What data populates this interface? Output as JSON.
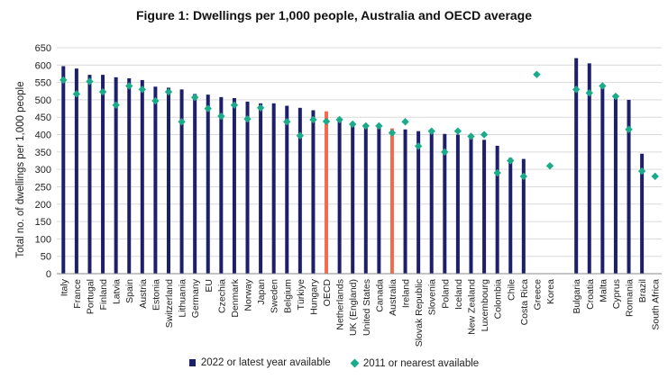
{
  "chart_data": {
    "type": "bar",
    "title": "Figure 1: Dwellings per 1,000 people, Australia and OECD average",
    "ylabel": "Total no. of dwellings per 1,000 people",
    "xlabel": "",
    "ylim": [
      0,
      650
    ],
    "yticks": [
      0,
      50,
      100,
      150,
      200,
      250,
      300,
      350,
      400,
      450,
      500,
      550,
      600,
      650
    ],
    "categories": [
      "Italy",
      "France",
      "Portugal",
      "Finland",
      "Latvia",
      "Spain",
      "Austria",
      "Estonia",
      "Switzerland",
      "Lithuania",
      "Germany",
      "EU",
      "Czechia",
      "Denmark",
      "Norway",
      "Japan",
      "Sweden",
      "Belgium",
      "Türkiye",
      "Hungary",
      "OECD",
      "Netherlands",
      "UK (England)",
      "United States",
      "Canada",
      "Australia",
      "Ireland",
      "Slovak Republic",
      "Slovenia",
      "Poland",
      "Iceland",
      "New Zealand",
      "Luxembourg",
      "Colombia",
      "Chile",
      "Costa Rica",
      "Greece",
      "Korea",
      "",
      "Bulgaria",
      "Croatia",
      "Malta",
      "Cyprus",
      "Romania",
      "Brazil",
      "South Africa"
    ],
    "series": [
      {
        "name": "2022 or latest year available",
        "marker": "bar",
        "values": [
          597,
          590,
          572,
          572,
          565,
          562,
          557,
          538,
          535,
          530,
          517,
          515,
          508,
          505,
          495,
          490,
          490,
          483,
          477,
          470,
          467,
          448,
          435,
          425,
          423,
          418,
          415,
          410,
          405,
          402,
          400,
          392,
          385,
          368,
          333,
          330,
          null,
          null,
          null,
          620,
          605,
          540,
          515,
          500,
          345,
          null
        ],
        "highlight": {
          "OECD": "#f26a4f",
          "Australia": "#f26a4f"
        }
      },
      {
        "name": "2011 or nearest available",
        "marker": "diamond",
        "values": [
          557,
          517,
          553,
          523,
          485,
          540,
          530,
          497,
          523,
          437,
          507,
          475,
          453,
          485,
          445,
          477,
          null,
          437,
          397,
          443,
          438,
          443,
          430,
          425,
          425,
          405,
          437,
          367,
          410,
          350,
          410,
          395,
          400,
          290,
          325,
          280,
          573,
          310,
          null,
          530,
          520,
          540,
          510,
          415,
          295,
          280
        ]
      }
    ],
    "colors": {
      "bar": "#1d1f6b",
      "highlight": "#f26a4f",
      "diamond": "#1aab8a",
      "grid": "#d9d9d9",
      "axis": "#888888"
    },
    "legend_position": "bottom-center"
  }
}
